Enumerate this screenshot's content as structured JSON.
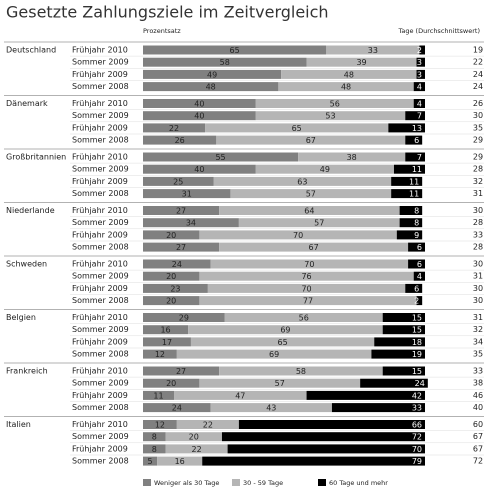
{
  "chart_data": {
    "type": "stacked-bar-groups",
    "title": "Gesetzte Zahlungsziele im Zeitvergleich",
    "value_axis_label": "Prozentsatz",
    "extra_column_label": "Tage (Durchschnittswert)",
    "xlim": [
      0,
      100
    ],
    "series": [
      {
        "name": "Weniger als 30 Tage",
        "color": "#808080"
      },
      {
        "name": "30 - 59 Tage",
        "color": "#b5b5b5"
      },
      {
        "name": "60 Tage und mehr",
        "color": "#000000"
      }
    ],
    "groups": [
      {
        "name": "Deutschland",
        "rows": [
          {
            "label": "Frühjahr 2010",
            "values": [
              65,
              33,
              2
            ],
            "days": 19
          },
          {
            "label": "Sommer 2009",
            "values": [
              58,
              39,
              3
            ],
            "days": 22
          },
          {
            "label": "Frühjahr 2009",
            "values": [
              49,
              48,
              3
            ],
            "days": 24
          },
          {
            "label": "Sommer 2008",
            "values": [
              48,
              48,
              4
            ],
            "days": 24
          }
        ]
      },
      {
        "name": "Dänemark",
        "rows": [
          {
            "label": "Frühjahr 2010",
            "values": [
              40,
              56,
              4
            ],
            "days": 26
          },
          {
            "label": "Sommer 2009",
            "values": [
              40,
              53,
              7
            ],
            "days": 30
          },
          {
            "label": "Frühjahr 2009",
            "values": [
              22,
              65,
              13
            ],
            "days": 35
          },
          {
            "label": "Sommer 2008",
            "values": [
              26,
              67,
              6
            ],
            "days": 29
          }
        ]
      },
      {
        "name": "Großbritannien",
        "rows": [
          {
            "label": "Frühjahr 2010",
            "values": [
              55,
              38,
              7
            ],
            "days": 29
          },
          {
            "label": "Sommer 2009",
            "values": [
              40,
              49,
              11
            ],
            "days": 28
          },
          {
            "label": "Frühjahr 2009",
            "values": [
              25,
              63,
              11
            ],
            "days": 32
          },
          {
            "label": "Sommer 2008",
            "values": [
              31,
              57,
              11
            ],
            "days": 31
          }
        ]
      },
      {
        "name": "Niederlande",
        "rows": [
          {
            "label": "Frühjahr 2010",
            "values": [
              27,
              64,
              8
            ],
            "days": 30
          },
          {
            "label": "Sommer 2009",
            "values": [
              34,
              57,
              8
            ],
            "days": 28
          },
          {
            "label": "Frühjahr 2009",
            "values": [
              20,
              70,
              9
            ],
            "days": 33
          },
          {
            "label": "Sommer 2008",
            "values": [
              27,
              67,
              6
            ],
            "days": 28
          }
        ]
      },
      {
        "name": "Schweden",
        "rows": [
          {
            "label": "Frühjahr 2010",
            "values": [
              24,
              70,
              6
            ],
            "days": 30
          },
          {
            "label": "Sommer 2009",
            "values": [
              20,
              76,
              4
            ],
            "days": 31
          },
          {
            "label": "Frühjahr 2009",
            "values": [
              23,
              70,
              6
            ],
            "days": 30
          },
          {
            "label": "Sommer 2008",
            "values": [
              20,
              77,
              2
            ],
            "days": 30
          }
        ]
      },
      {
        "name": "Belgien",
        "rows": [
          {
            "label": "Frühjahr 2010",
            "values": [
              29,
              56,
              15
            ],
            "days": 31
          },
          {
            "label": "Sommer 2009",
            "values": [
              16,
              69,
              15
            ],
            "days": 32
          },
          {
            "label": "Frühjahr 2009",
            "values": [
              17,
              65,
              18
            ],
            "days": 34
          },
          {
            "label": "Sommer 2008",
            "values": [
              12,
              69,
              19
            ],
            "days": 35
          }
        ]
      },
      {
        "name": "Frankreich",
        "rows": [
          {
            "label": "Frühjahr 2010",
            "values": [
              27,
              58,
              15
            ],
            "days": 33
          },
          {
            "label": "Sommer 2009",
            "values": [
              20,
              57,
              24
            ],
            "days": 38
          },
          {
            "label": "Frühjahr 2009",
            "values": [
              11,
              47,
              42
            ],
            "days": 46
          },
          {
            "label": "Sommer 2008",
            "values": [
              24,
              43,
              33
            ],
            "days": 40
          }
        ]
      },
      {
        "name": "Italien",
        "rows": [
          {
            "label": "Frühjahr 2010",
            "values": [
              12,
              22,
              66
            ],
            "days": 60
          },
          {
            "label": "Sommer 2009",
            "values": [
              8,
              20,
              72
            ],
            "days": 67
          },
          {
            "label": "Frühjahr 2009",
            "values": [
              8,
              22,
              70
            ],
            "days": 67
          },
          {
            "label": "Sommer 2008",
            "values": [
              5,
              16,
              79
            ],
            "days": 72
          }
        ]
      }
    ]
  }
}
